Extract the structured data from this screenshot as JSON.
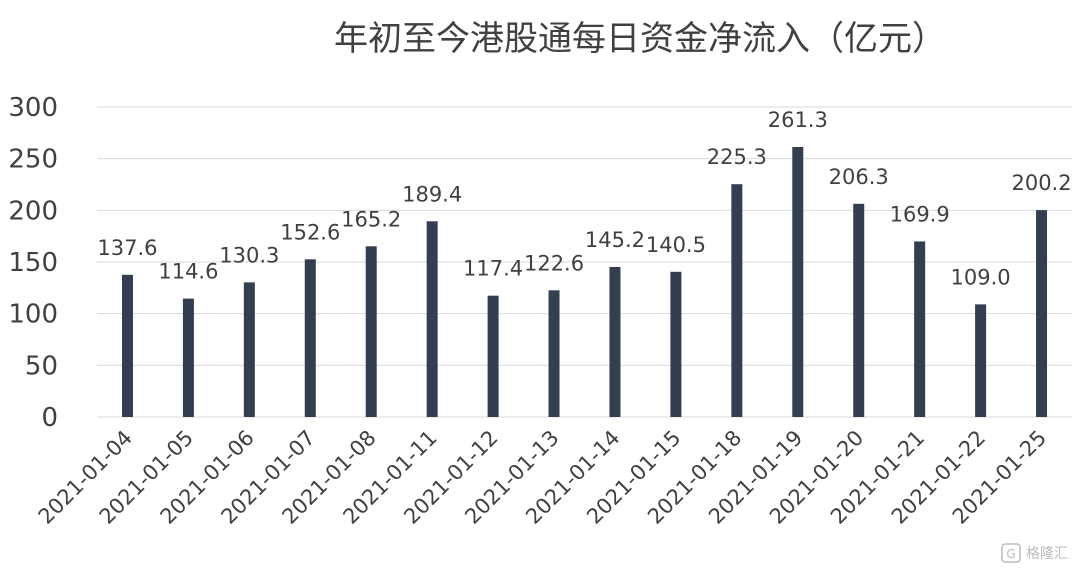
{
  "chart_data": {
    "type": "bar",
    "title": "年初至今港股通每日资金净流入（亿元）",
    "xlabel": "",
    "ylabel": "",
    "ylim": [
      0,
      300
    ],
    "yticks": [
      "0",
      "50",
      "100",
      "150",
      "200",
      "250",
      "300"
    ],
    "categories": [
      "2021-01-04",
      "2021-01-05",
      "2021-01-06",
      "2021-01-07",
      "2021-01-08",
      "2021-01-11",
      "2021-01-12",
      "2021-01-13",
      "2021-01-14",
      "2021-01-15",
      "2021-01-18",
      "2021-01-19",
      "2021-01-20",
      "2021-01-21",
      "2021-01-22",
      "2021-01-25"
    ],
    "values": [
      137.6,
      114.6,
      130.3,
      152.6,
      165.2,
      189.4,
      117.4,
      122.6,
      145.2,
      140.5,
      225.3,
      261.3,
      206.3,
      169.9,
      109.0,
      200.2
    ],
    "data_labels": [
      "137.6",
      "114.6",
      "130.3",
      "152.6",
      "165.2",
      "189.4",
      "117.4",
      "122.6",
      "145.2",
      "140.5",
      "225.3",
      "261.3",
      "206.3",
      "169.9",
      "109.0",
      "200.2"
    ],
    "grid": true,
    "legend": "none",
    "bar_color": "#333f50"
  },
  "watermark": {
    "icon": "gelonghui-logo-icon",
    "text": "格隆汇"
  }
}
